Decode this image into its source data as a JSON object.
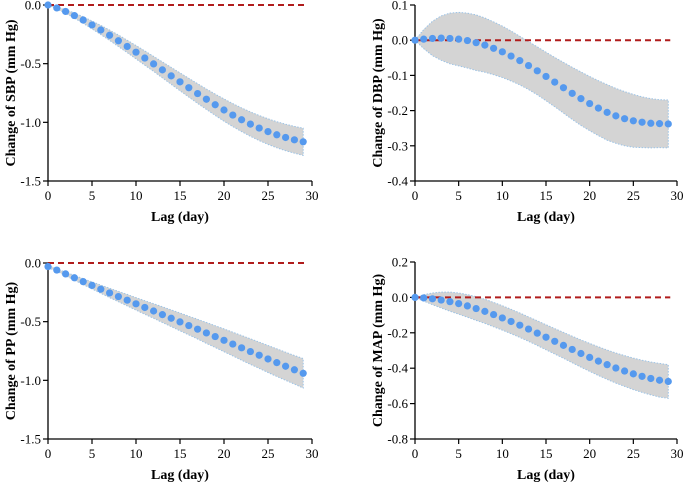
{
  "colors": {
    "dot": "#5599ee",
    "band": "#d4d4d4",
    "reference": "#b01c1c"
  },
  "chart_data": [
    {
      "type": "line",
      "ylabel": "Change of SBP (mm Hg)",
      "xlabel": "Lag (day)",
      "xlim": [
        0,
        30
      ],
      "ylim": [
        -1.5,
        0.0
      ],
      "xticks": [
        0,
        5,
        10,
        15,
        20,
        25,
        30
      ],
      "xtick_labels": [
        "0",
        "5",
        "10",
        "15",
        "20",
        "25",
        "30"
      ],
      "yticks": [
        0.0,
        -0.5,
        -1.0,
        -1.5
      ],
      "ytick_labels": [
        "0.0",
        "-0.5",
        "-1.0",
        "-1.5"
      ],
      "reference_y": 0,
      "x": [
        0,
        1,
        2,
        3,
        4,
        5,
        6,
        7,
        8,
        9,
        10,
        11,
        12,
        13,
        14,
        15,
        16,
        17,
        18,
        19,
        20,
        21,
        22,
        23,
        24,
        25,
        26,
        27,
        28,
        29
      ],
      "series": [
        {
          "name": "estimate",
          "values": [
            0.0,
            -0.025,
            -0.055,
            -0.09,
            -0.128,
            -0.17,
            -0.213,
            -0.258,
            -0.305,
            -0.353,
            -0.402,
            -0.452,
            -0.502,
            -0.553,
            -0.604,
            -0.655,
            -0.705,
            -0.755,
            -0.803,
            -0.85,
            -0.895,
            -0.938,
            -0.978,
            -1.015,
            -1.049,
            -1.079,
            -1.106,
            -1.129,
            -1.149,
            -1.166
          ]
        },
        {
          "name": "upper",
          "values": [
            0.0,
            -0.015,
            -0.04,
            -0.068,
            -0.1,
            -0.136,
            -0.174,
            -0.214,
            -0.256,
            -0.3,
            -0.345,
            -0.391,
            -0.438,
            -0.485,
            -0.532,
            -0.579,
            -0.625,
            -0.671,
            -0.716,
            -0.759,
            -0.8,
            -0.84,
            -0.877,
            -0.911,
            -0.942,
            -0.97,
            -0.995,
            -1.016,
            -1.035,
            -1.05
          ]
        },
        {
          "name": "lower",
          "values": [
            0.0,
            -0.035,
            -0.07,
            -0.112,
            -0.156,
            -0.204,
            -0.252,
            -0.302,
            -0.354,
            -0.406,
            -0.459,
            -0.513,
            -0.566,
            -0.621,
            -0.676,
            -0.731,
            -0.785,
            -0.839,
            -0.89,
            -0.941,
            -0.99,
            -1.036,
            -1.079,
            -1.119,
            -1.156,
            -1.188,
            -1.217,
            -1.242,
            -1.263,
            -1.282
          ]
        }
      ]
    },
    {
      "type": "line",
      "ylabel": "Change of DBP (mm Hg)",
      "xlabel": "Lag (day)",
      "xlim": [
        0,
        30
      ],
      "ylim": [
        -0.4,
        0.1
      ],
      "xticks": [
        0,
        5,
        10,
        15,
        20,
        25,
        30
      ],
      "xtick_labels": [
        "0",
        "5",
        "10",
        "15",
        "20",
        "25",
        "30"
      ],
      "yticks": [
        0.1,
        0.0,
        -0.1,
        -0.2,
        -0.3,
        -0.4
      ],
      "ytick_labels": [
        "0.1",
        "0.0",
        "-0.1",
        "-0.2",
        "-0.3",
        "-0.4"
      ],
      "reference_y": 0,
      "x": [
        0,
        1,
        2,
        3,
        4,
        5,
        6,
        7,
        8,
        9,
        10,
        11,
        12,
        13,
        14,
        15,
        16,
        17,
        18,
        19,
        20,
        21,
        22,
        23,
        24,
        25,
        26,
        27,
        28,
        29
      ],
      "series": [
        {
          "name": "estimate",
          "values": [
            0.0,
            0.003,
            0.005,
            0.006,
            0.005,
            0.003,
            -0.001,
            -0.007,
            -0.014,
            -0.023,
            -0.033,
            -0.045,
            -0.058,
            -0.072,
            -0.087,
            -0.103,
            -0.119,
            -0.135,
            -0.151,
            -0.166,
            -0.18,
            -0.193,
            -0.205,
            -0.215,
            -0.223,
            -0.229,
            -0.233,
            -0.236,
            -0.237,
            -0.238
          ]
        },
        {
          "name": "upper",
          "values": [
            0.0,
            0.03,
            0.054,
            0.069,
            0.077,
            0.079,
            0.077,
            0.072,
            0.063,
            0.052,
            0.04,
            0.026,
            0.011,
            -0.004,
            -0.019,
            -0.034,
            -0.049,
            -0.063,
            -0.077,
            -0.09,
            -0.103,
            -0.115,
            -0.126,
            -0.137,
            -0.146,
            -0.154,
            -0.161,
            -0.166,
            -0.169,
            -0.17
          ]
        },
        {
          "name": "lower",
          "values": [
            0.0,
            -0.024,
            -0.044,
            -0.057,
            -0.067,
            -0.073,
            -0.079,
            -0.086,
            -0.091,
            -0.098,
            -0.106,
            -0.116,
            -0.127,
            -0.14,
            -0.155,
            -0.172,
            -0.189,
            -0.207,
            -0.225,
            -0.242,
            -0.257,
            -0.271,
            -0.284,
            -0.293,
            -0.3,
            -0.304,
            -0.305,
            -0.306,
            -0.305,
            -0.306
          ]
        }
      ]
    },
    {
      "type": "line",
      "ylabel": "Change of PP (mm Hg)",
      "xlabel": "Lag (day)",
      "xlim": [
        0,
        30
      ],
      "ylim": [
        -1.5,
        0.0
      ],
      "xticks": [
        0,
        5,
        10,
        15,
        20,
        25,
        30
      ],
      "xtick_labels": [
        "0",
        "5",
        "10",
        "15",
        "20",
        "25",
        "30"
      ],
      "yticks": [
        0.0,
        -0.5,
        -1.0,
        -1.5
      ],
      "ytick_labels": [
        "0.0",
        "-0.5",
        "-1.0",
        "-1.5"
      ],
      "reference_y": 0,
      "x": [
        0,
        1,
        2,
        3,
        4,
        5,
        6,
        7,
        8,
        9,
        10,
        11,
        12,
        13,
        14,
        15,
        16,
        17,
        18,
        19,
        20,
        21,
        22,
        23,
        24,
        25,
        26,
        27,
        28,
        29
      ],
      "series": [
        {
          "name": "estimate",
          "values": [
            -0.03,
            -0.06,
            -0.093,
            -0.126,
            -0.159,
            -0.191,
            -0.223,
            -0.255,
            -0.286,
            -0.317,
            -0.348,
            -0.379,
            -0.409,
            -0.44,
            -0.471,
            -0.502,
            -0.533,
            -0.564,
            -0.596,
            -0.627,
            -0.659,
            -0.691,
            -0.723,
            -0.755,
            -0.786,
            -0.818,
            -0.849,
            -0.88,
            -0.91,
            -0.94
          ]
        },
        {
          "name": "upper",
          "values": [
            -0.02,
            -0.05,
            -0.078,
            -0.106,
            -0.134,
            -0.161,
            -0.188,
            -0.215,
            -0.242,
            -0.268,
            -0.295,
            -0.321,
            -0.347,
            -0.373,
            -0.4,
            -0.426,
            -0.453,
            -0.48,
            -0.507,
            -0.534,
            -0.562,
            -0.59,
            -0.618,
            -0.646,
            -0.674,
            -0.703,
            -0.731,
            -0.76,
            -0.788,
            -0.815
          ]
        },
        {
          "name": "lower",
          "values": [
            -0.04,
            -0.07,
            -0.108,
            -0.146,
            -0.184,
            -0.221,
            -0.258,
            -0.295,
            -0.33,
            -0.366,
            -0.401,
            -0.437,
            -0.471,
            -0.507,
            -0.542,
            -0.578,
            -0.613,
            -0.648,
            -0.685,
            -0.72,
            -0.756,
            -0.792,
            -0.828,
            -0.864,
            -0.898,
            -0.933,
            -0.967,
            -1.0,
            -1.032,
            -1.065
          ]
        }
      ]
    },
    {
      "type": "line",
      "ylabel": "Change of MAP (mm Hg)",
      "xlabel": "Lag (day)",
      "xlim": [
        0,
        30
      ],
      "ylim": [
        -0.8,
        0.2
      ],
      "xticks": [
        0,
        5,
        10,
        15,
        20,
        25,
        30
      ],
      "xtick_labels": [
        "0",
        "5",
        "10",
        "15",
        "20",
        "25",
        "30"
      ],
      "yticks": [
        0.2,
        0.0,
        -0.2,
        -0.4,
        -0.6,
        -0.8
      ],
      "ytick_labels": [
        "0.2",
        "0.0",
        "-0.2",
        "-0.4",
        "-0.6",
        "-0.8"
      ],
      "reference_y": 0,
      "x": [
        0,
        1,
        2,
        3,
        4,
        5,
        6,
        7,
        8,
        9,
        10,
        11,
        12,
        13,
        14,
        15,
        16,
        17,
        18,
        19,
        20,
        21,
        22,
        23,
        24,
        25,
        26,
        27,
        28,
        29
      ],
      "series": [
        {
          "name": "estimate",
          "values": [
            0.0,
            -0.003,
            -0.008,
            -0.015,
            -0.024,
            -0.035,
            -0.048,
            -0.063,
            -0.079,
            -0.097,
            -0.116,
            -0.136,
            -0.157,
            -0.179,
            -0.202,
            -0.225,
            -0.248,
            -0.271,
            -0.294,
            -0.317,
            -0.339,
            -0.36,
            -0.38,
            -0.399,
            -0.416,
            -0.432,
            -0.446,
            -0.458,
            -0.468,
            -0.475
          ]
        },
        {
          "name": "upper",
          "values": [
            0.0,
            0.015,
            0.025,
            0.03,
            0.03,
            0.025,
            0.016,
            0.004,
            -0.011,
            -0.028,
            -0.047,
            -0.067,
            -0.088,
            -0.11,
            -0.132,
            -0.154,
            -0.176,
            -0.198,
            -0.219,
            -0.24,
            -0.26,
            -0.279,
            -0.297,
            -0.314,
            -0.329,
            -0.343,
            -0.355,
            -0.365,
            -0.373,
            -0.38
          ]
        },
        {
          "name": "lower",
          "values": [
            0.0,
            -0.021,
            -0.041,
            -0.06,
            -0.078,
            -0.095,
            -0.112,
            -0.13,
            -0.147,
            -0.166,
            -0.185,
            -0.205,
            -0.226,
            -0.248,
            -0.272,
            -0.296,
            -0.32,
            -0.344,
            -0.369,
            -0.394,
            -0.418,
            -0.441,
            -0.463,
            -0.484,
            -0.503,
            -0.521,
            -0.537,
            -0.551,
            -0.563,
            -0.57
          ]
        }
      ]
    }
  ]
}
